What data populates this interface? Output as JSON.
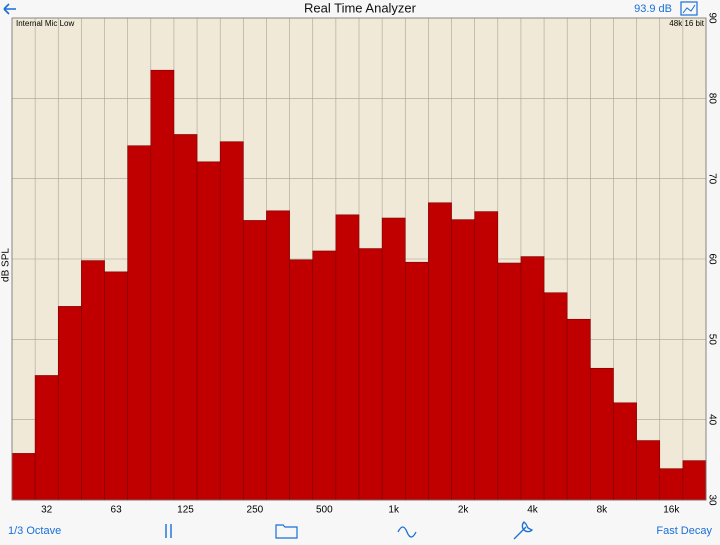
{
  "header": {
    "title": "Real Time Analyzer",
    "level": "93.9 dB"
  },
  "chart_data": {
    "type": "bar",
    "subtitle_left": "Internal Mic Low",
    "subtitle_right": "48k 16 bit",
    "y_label": "dB SPL",
    "categories": [
      null,
      "32",
      null,
      null,
      "63",
      null,
      null,
      "125",
      null,
      null,
      "250",
      null,
      null,
      "500",
      null,
      null,
      "1k",
      null,
      null,
      "2k",
      null,
      null,
      "4k",
      null,
      null,
      "8k",
      null,
      null,
      "16k",
      null
    ],
    "values": [
      35.8,
      45.5,
      54.1,
      59.8,
      58.4,
      74.1,
      83.5,
      75.5,
      72.1,
      74.6,
      64.8,
      66.0,
      59.9,
      61.0,
      65.5,
      61.3,
      65.1,
      59.6,
      67.0,
      64.9,
      65.9,
      59.5,
      60.3,
      55.8,
      52.5,
      46.4,
      42.1,
      37.4,
      33.9,
      34.9
    ],
    "color": "#c00000",
    "ylim": [
      30,
      90
    ],
    "yticks": [
      30,
      40,
      50,
      60,
      70,
      80,
      90
    ],
    "grid": true
  },
  "toolbar": {
    "left": "1/3 Octave",
    "right": "Fast Decay"
  }
}
